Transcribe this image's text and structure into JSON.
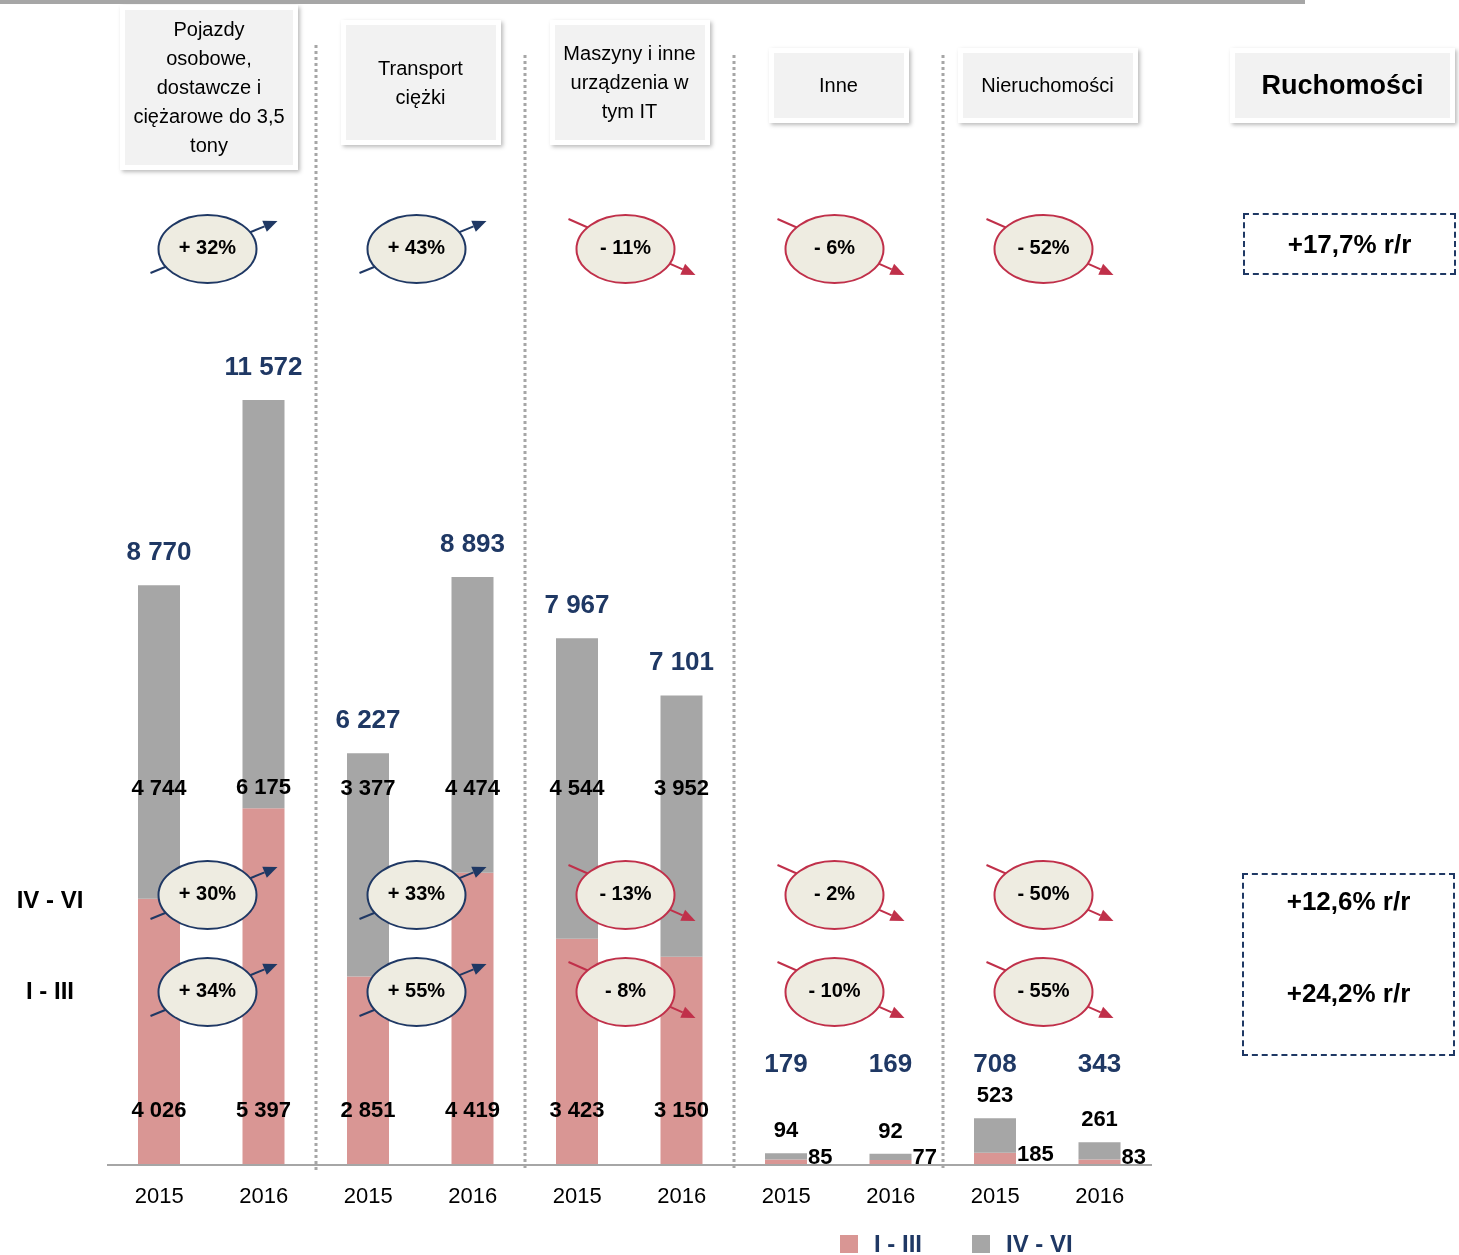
{
  "chart_data": {
    "type": "bar",
    "stacked": true,
    "data_labels": true,
    "tick_labels": "x",
    "legend": "bottom",
    "categories": [
      "2015",
      "2016",
      "2015",
      "2016",
      "2015",
      "2016",
      "2015",
      "2016",
      "2015",
      "2016"
    ],
    "series": [
      {
        "name": "I - III",
        "color": "#d99694",
        "values": [
          4026,
          5397,
          2851,
          4419,
          3423,
          3150,
          85,
          77,
          185,
          83
        ]
      },
      {
        "name": "IV - VI",
        "color": "#a6a6a6",
        "values": [
          4744,
          6175,
          3377,
          4474,
          4544,
          3952,
          94,
          92,
          523,
          261
        ]
      }
    ],
    "totals": [
      "8 770",
      "11 572",
      "6 227",
      "8 893",
      "7 967",
      "7 101",
      "179",
      "169",
      "708",
      "343"
    ],
    "annotations": [
      "Pojazdy osobowe, dostawcze i ciężarowe do 3,5 tony",
      "Transport ciężki",
      "Maszyny i inne urządzenia w tym IT",
      "Inne",
      "Nieruchomości",
      "Ruchomości",
      "+ 32%",
      "+ 43%",
      "- 11%",
      "- 6%",
      "- 52%",
      "+17,7% r/r",
      "+ 30%",
      "+ 33%",
      "- 13%",
      "- 2%",
      "- 50%",
      "+ 34%",
      "+ 55%",
      "- 8%",
      "- 10%",
      "- 55%",
      "IV - VI",
      "I - III",
      "+12,6% r/r",
      "+24,2% r/r"
    ]
  }
}
